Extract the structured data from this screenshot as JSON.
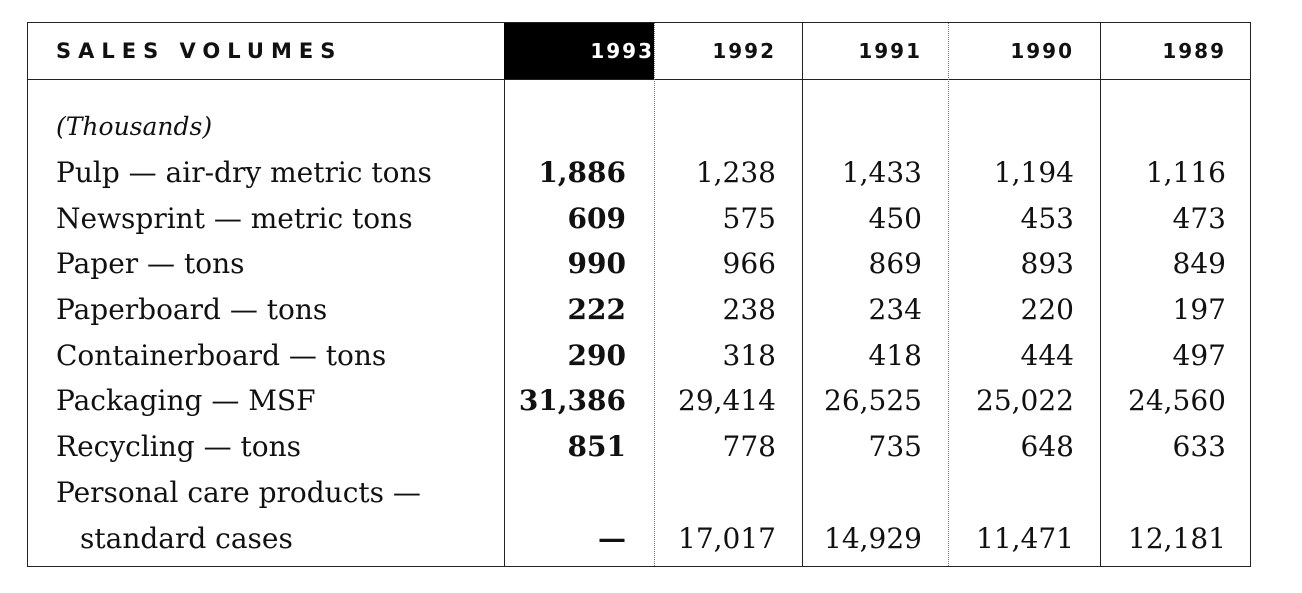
{
  "table": {
    "title": "SALES VOLUMES",
    "years": [
      "1993",
      "1992",
      "1991",
      "1990",
      "1989"
    ],
    "unit_note": "(Thousands)",
    "rows": [
      {
        "label": "Pulp — air-dry metric tons",
        "values": [
          "1,886",
          "1,238",
          "1,433",
          "1,194",
          "1,116"
        ]
      },
      {
        "label": "Newsprint — metric tons",
        "values": [
          "609",
          "575",
          "450",
          "453",
          "473"
        ]
      },
      {
        "label": "Paper — tons",
        "values": [
          "990",
          "966",
          "869",
          "893",
          "849"
        ]
      },
      {
        "label": "Paperboard — tons",
        "values": [
          "222",
          "238",
          "234",
          "220",
          "197"
        ]
      },
      {
        "label": "Containerboard — tons",
        "values": [
          "290",
          "318",
          "418",
          "444",
          "497"
        ]
      },
      {
        "label": "Packaging — MSF",
        "values": [
          "31,386",
          "29,414",
          "26,525",
          "25,022",
          "24,560"
        ]
      },
      {
        "label": "Recycling — tons",
        "values": [
          "851",
          "778",
          "735",
          "648",
          "633"
        ]
      },
      {
        "label": "Personal care products —",
        "values": [
          "",
          "",
          "",
          "",
          ""
        ]
      },
      {
        "label": "standard cases",
        "values": [
          "—",
          "17,017",
          "14,929",
          "11,471",
          "12,181"
        ]
      }
    ]
  }
}
